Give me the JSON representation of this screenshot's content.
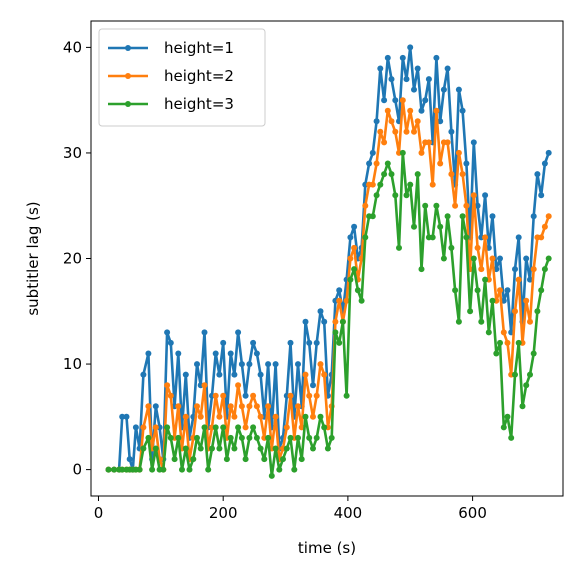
{
  "chart_data": {
    "type": "line",
    "title": "",
    "xlabel": "time (s)",
    "ylabel": "subtitler lag (s)",
    "xlim": [
      -12,
      745
    ],
    "ylim": [
      -2.5,
      42.5
    ],
    "xticks": [
      0,
      200,
      400,
      600
    ],
    "yticks": [
      0,
      10,
      20,
      30,
      40
    ],
    "grid": false,
    "legend_position": "top-left",
    "series": [
      {
        "name": "height=1",
        "color": "#1f77b4",
        "x": [
          16,
          25,
          33,
          38,
          45,
          50,
          55,
          60,
          66,
          72,
          80,
          86,
          92,
          98,
          104,
          110,
          116,
          122,
          128,
          134,
          140,
          146,
          152,
          158,
          164,
          170,
          176,
          182,
          188,
          194,
          200,
          206,
          212,
          218,
          224,
          230,
          236,
          242,
          248,
          254,
          260,
          266,
          272,
          278,
          284,
          290,
          296,
          302,
          308,
          314,
          320,
          326,
          332,
          338,
          344,
          350,
          356,
          362,
          368,
          374,
          380,
          386,
          392,
          398,
          404,
          410,
          416,
          422,
          428,
          434,
          440,
          446,
          452,
          458,
          464,
          470,
          476,
          482,
          488,
          494,
          500,
          506,
          512,
          518,
          524,
          530,
          536,
          542,
          548,
          554,
          560,
          566,
          572,
          578,
          584,
          590,
          596,
          602,
          608,
          614,
          620,
          626,
          632,
          638,
          644,
          650,
          656,
          662,
          668,
          674,
          680,
          686,
          692,
          698,
          704,
          710,
          716,
          722
        ],
        "y": [
          0,
          0,
          0,
          5,
          5,
          1,
          0,
          4,
          2,
          9,
          11,
          1,
          6,
          4,
          1,
          13,
          12,
          6,
          11,
          4,
          9,
          3,
          5,
          10,
          8,
          13,
          4,
          7,
          11,
          9,
          12,
          5,
          11,
          9,
          13,
          10,
          7,
          10,
          12,
          11,
          9,
          5,
          10,
          4,
          10,
          2,
          3,
          7,
          12,
          5,
          10,
          6,
          14,
          12,
          8,
          12,
          15,
          14,
          7,
          9,
          16,
          17,
          15,
          18,
          22,
          23,
          20,
          21,
          27,
          29,
          30,
          33,
          38,
          35,
          39,
          37,
          35,
          33,
          39,
          37,
          40,
          36,
          38,
          34,
          35,
          37,
          31,
          39,
          33,
          36,
          38,
          32,
          27,
          36,
          34,
          29,
          22,
          31,
          25,
          22,
          26,
          21,
          24,
          19,
          20,
          16,
          17,
          13,
          19,
          22,
          14,
          20,
          18,
          24,
          28,
          26,
          29,
          30
        ]
      },
      {
        "name": "height=2",
        "color": "#ff7f0e",
        "x": [
          16,
          25,
          33,
          38,
          45,
          50,
          55,
          60,
          66,
          72,
          80,
          86,
          92,
          98,
          104,
          110,
          116,
          122,
          128,
          134,
          140,
          146,
          152,
          158,
          164,
          170,
          176,
          182,
          188,
          194,
          200,
          206,
          212,
          218,
          224,
          230,
          236,
          242,
          248,
          254,
          260,
          266,
          272,
          278,
          284,
          290,
          296,
          302,
          308,
          314,
          320,
          326,
          332,
          338,
          344,
          350,
          356,
          362,
          368,
          374,
          380,
          386,
          392,
          398,
          404,
          410,
          416,
          422,
          428,
          434,
          440,
          446,
          452,
          458,
          464,
          470,
          476,
          482,
          488,
          494,
          500,
          506,
          512,
          518,
          524,
          530,
          536,
          542,
          548,
          554,
          560,
          566,
          572,
          578,
          584,
          590,
          596,
          602,
          608,
          614,
          620,
          626,
          632,
          638,
          644,
          650,
          656,
          662,
          668,
          674,
          680,
          686,
          692,
          698,
          704,
          710,
          716,
          722
        ],
        "y": [
          0,
          0,
          0,
          0,
          0,
          0,
          0,
          0,
          0,
          4,
          6,
          2,
          4,
          1,
          0,
          8,
          7,
          3,
          6,
          2,
          5,
          1,
          3,
          6,
          5,
          8,
          2,
          4,
          7,
          5,
          7,
          3,
          6,
          5,
          8,
          6,
          4,
          6,
          7,
          6,
          5,
          3,
          6,
          2,
          5,
          1,
          2,
          4,
          7,
          3,
          6,
          4,
          9,
          7,
          5,
          7,
          10,
          9,
          4,
          6,
          14,
          16,
          14,
          16,
          20,
          21,
          18,
          20,
          25,
          27,
          27,
          29,
          32,
          31,
          34,
          33,
          32,
          30,
          35,
          32,
          34,
          32,
          33,
          30,
          31,
          31,
          27,
          34,
          29,
          31,
          31,
          28,
          25,
          30,
          28,
          25,
          19,
          26,
          21,
          19,
          22,
          18,
          20,
          16,
          17,
          13,
          12,
          9,
          15,
          18,
          12,
          16,
          14,
          19,
          22,
          22,
          23,
          24
        ]
      },
      {
        "name": "height=3",
        "color": "#2ca02c",
        "x": [
          16,
          25,
          33,
          38,
          45,
          50,
          55,
          60,
          66,
          72,
          80,
          86,
          92,
          98,
          104,
          110,
          116,
          122,
          128,
          134,
          140,
          146,
          152,
          158,
          164,
          170,
          176,
          182,
          188,
          194,
          200,
          206,
          212,
          218,
          224,
          230,
          236,
          242,
          248,
          254,
          260,
          266,
          272,
          278,
          284,
          290,
          296,
          302,
          308,
          314,
          320,
          326,
          332,
          338,
          344,
          350,
          356,
          362,
          368,
          374,
          380,
          386,
          392,
          398,
          404,
          410,
          416,
          422,
          428,
          434,
          440,
          446,
          452,
          458,
          464,
          470,
          476,
          482,
          488,
          494,
          500,
          506,
          512,
          518,
          524,
          530,
          536,
          542,
          548,
          554,
          560,
          566,
          572,
          578,
          584,
          590,
          596,
          602,
          608,
          614,
          620,
          626,
          632,
          638,
          644,
          650,
          656,
          662,
          668,
          674,
          680,
          686,
          692,
          698,
          704,
          710,
          716,
          722
        ],
        "y": [
          0,
          0,
          0,
          0,
          0,
          0,
          0,
          0,
          0,
          2,
          3,
          0,
          2,
          0,
          0,
          4,
          3,
          1,
          3,
          0,
          2,
          0,
          1,
          3,
          2,
          4,
          0,
          2,
          4,
          2,
          4,
          1,
          3,
          2,
          4,
          3,
          1,
          3,
          4,
          3,
          2,
          1,
          3,
          -0.6,
          2,
          0,
          1,
          2,
          3,
          0,
          3,
          1,
          5,
          3,
          2,
          3,
          5,
          4,
          2,
          3,
          13,
          12,
          14,
          7,
          18,
          19,
          17,
          16,
          22,
          24,
          24,
          26,
          27,
          28,
          29,
          28,
          26,
          21,
          30,
          26,
          27,
          23,
          28,
          19,
          25,
          22,
          22,
          25,
          23,
          20,
          24,
          21,
          17,
          14,
          24,
          22,
          15,
          20,
          17,
          14,
          18,
          13,
          16,
          11,
          12,
          4,
          5,
          3,
          9,
          12,
          6,
          8,
          9,
          11,
          15,
          17,
          19,
          20
        ]
      }
    ]
  }
}
